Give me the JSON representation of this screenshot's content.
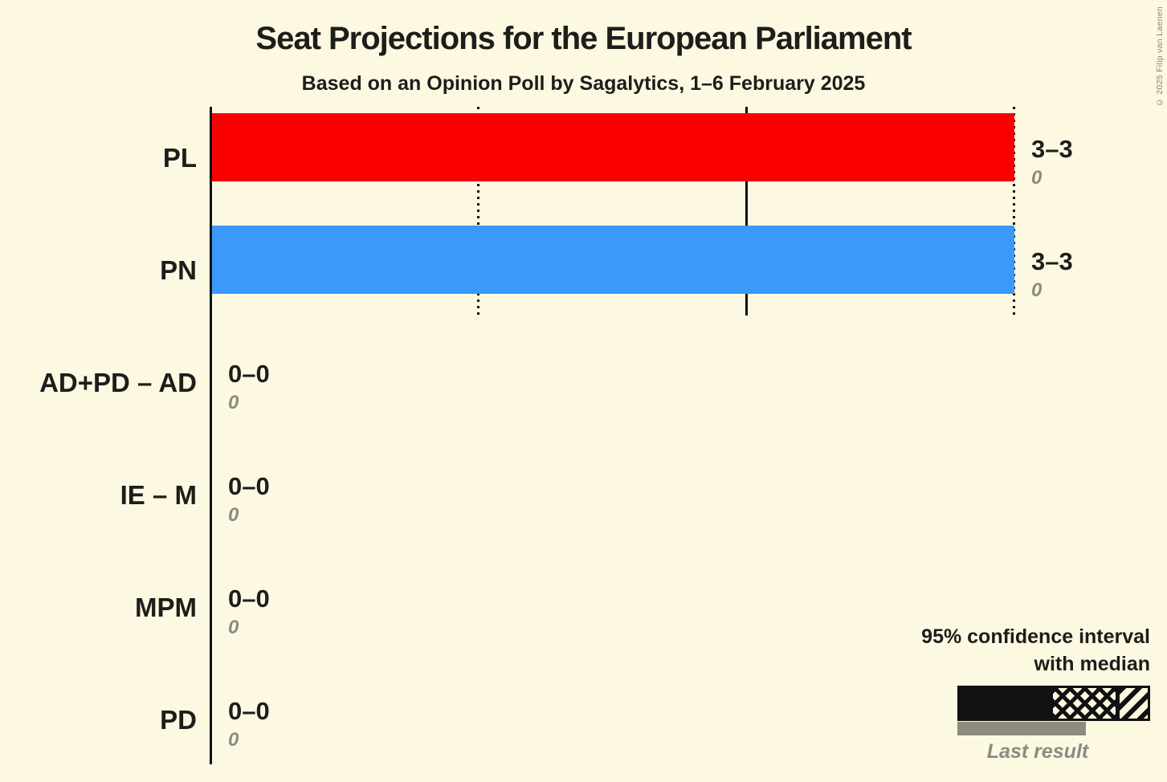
{
  "copyright": "© 2025 Filip van Laenen",
  "colors": {
    "background": "#fdf8e1",
    "pl_red": "#fb0000",
    "pn_blue": "#3b99fa",
    "gridline_black": "#111111",
    "last_result_gray": "#8c8b7d",
    "muted_text_gray": "#8b8b82"
  },
  "legend": {
    "ci_label_line1": "95% confidence interval",
    "ci_label_line2": "with median",
    "last_result_label": "Last result"
  },
  "chart_data": {
    "type": "bar",
    "orientation": "horizontal",
    "title": "Seat Projections for the European Parliament",
    "subtitle": "Based on an Opinion Poll by Sagalytics, 1–6 February 2025",
    "categories": [
      "PL",
      "PN",
      "AD+PD – AD",
      "IE – M",
      "MPM",
      "PD"
    ],
    "series": [
      {
        "name": "95% confidence interval",
        "kind": "range",
        "values": [
          [
            3,
            3
          ],
          [
            3,
            3
          ],
          [
            0,
            0
          ],
          [
            0,
            0
          ],
          [
            0,
            0
          ],
          [
            0,
            0
          ]
        ]
      },
      {
        "name": "median",
        "kind": "value",
        "values": [
          3,
          3,
          0,
          0,
          0,
          0
        ]
      },
      {
        "name": "Last result",
        "kind": "value",
        "values": [
          0,
          0,
          0,
          0,
          0,
          0
        ]
      }
    ],
    "value_labels": [
      "3–3",
      "3–3",
      "0–0",
      "0–0",
      "0–0",
      "0–0"
    ],
    "last_result_labels": [
      "0",
      "0",
      "0",
      "0",
      "0",
      "0"
    ],
    "bar_colors": [
      "#fb0000",
      "#3b99fa",
      "",
      "",
      "",
      ""
    ],
    "xlim": [
      0,
      3
    ],
    "x_gridlines": [
      {
        "seats": 0,
        "style": "solid"
      },
      {
        "seats": 1,
        "style": "dotted"
      },
      {
        "seats": 2,
        "style": "solid"
      },
      {
        "seats": 3,
        "style": "dotted"
      }
    ],
    "x_tick_labels_visible": false,
    "legend_position": "bottom-right"
  }
}
